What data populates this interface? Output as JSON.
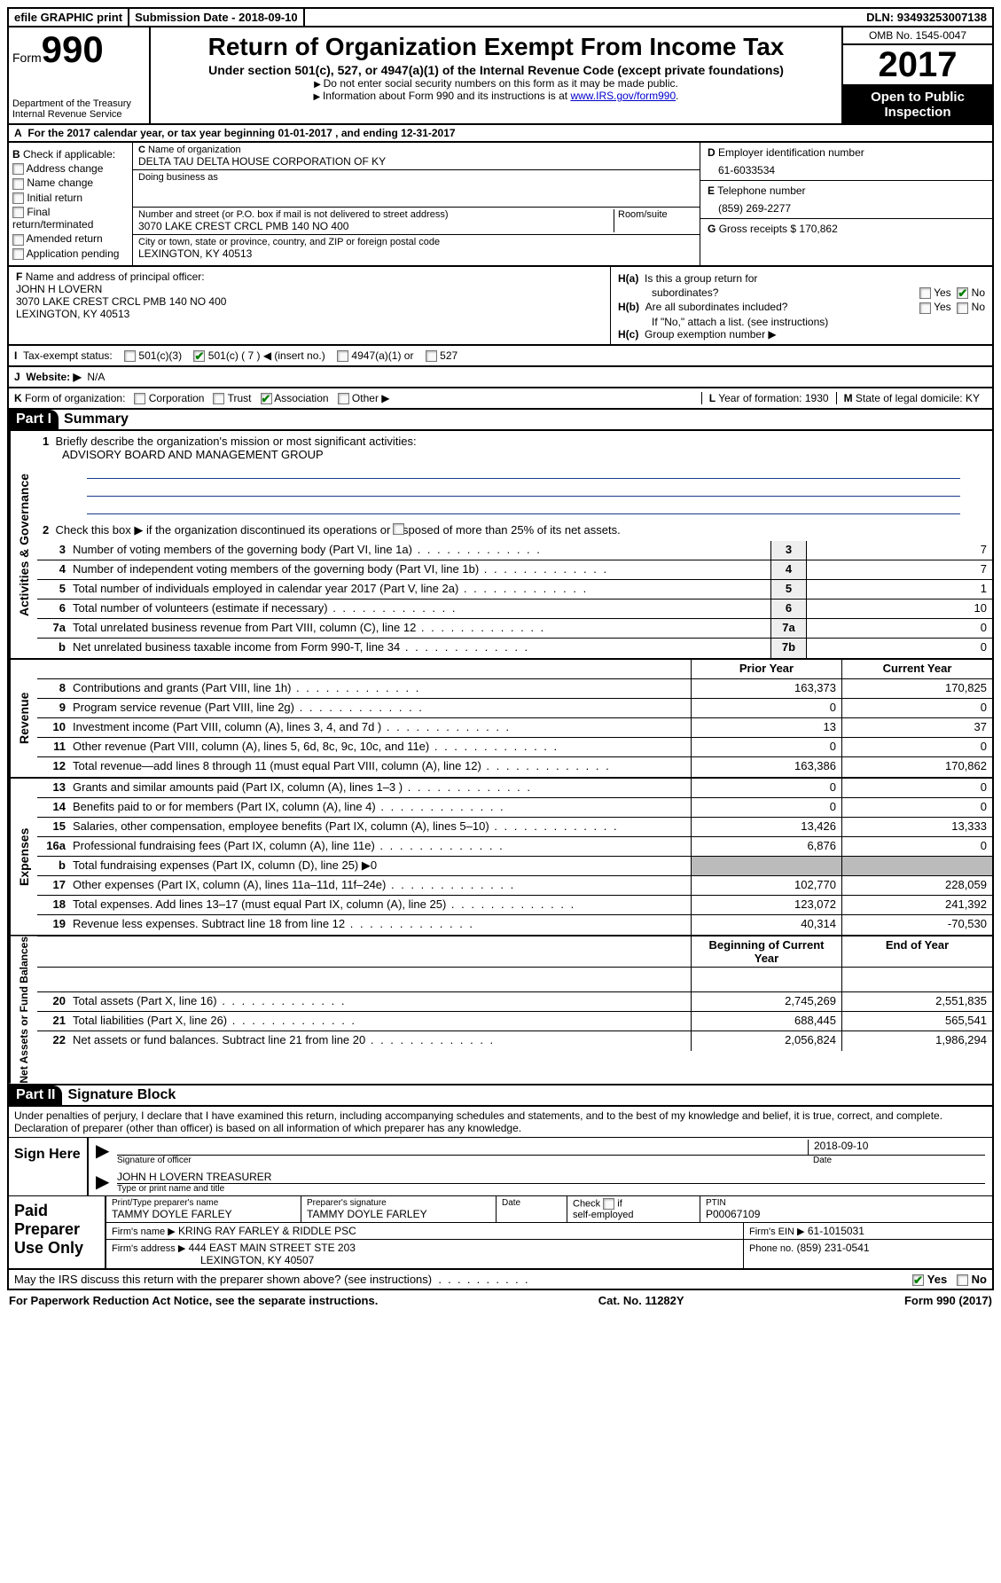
{
  "topbar": {
    "efile": "efile GRAPHIC print",
    "sub_lbl": "Submission Date -",
    "sub_date": "2018-09-10",
    "dln_lbl": "DLN:",
    "dln": "93493253007138"
  },
  "header": {
    "form_word": "Form",
    "form_no": "990",
    "dept1": "Department of the Treasury",
    "dept2": "Internal Revenue Service",
    "title": "Return of Organization Exempt From Income Tax",
    "sub": "Under section 501(c), 527, or 4947(a)(1) of the Internal Revenue Code (except private foundations)",
    "note1": "Do not enter social security numbers on this form as it may be made public.",
    "note2_pre": "Information about Form 990 and its instructions is at ",
    "note2_link": "www.IRS.gov/form990",
    "omb": "OMB No. 1545-0047",
    "year": "2017",
    "inspect1": "Open to Public",
    "inspect2": "Inspection"
  },
  "A": {
    "text": "For the 2017 calendar year, or tax year beginning 01-01-2017   , and ending 12-31-2017"
  },
  "B": {
    "hdr": "Check if applicable:",
    "items": [
      "Address change",
      "Name change",
      "Initial return",
      "Final return/terminated",
      "Amended return",
      "Application pending"
    ]
  },
  "C": {
    "name_lbl": "Name of organization",
    "name": "DELTA TAU DELTA HOUSE CORPORATION OF KY",
    "dba_lbl": "Doing business as",
    "dba": "",
    "street_lbl": "Number and street (or P.O. box if mail is not delivered to street address)",
    "room_lbl": "Room/suite",
    "street": "3070 LAKE CREST CRCL PMB 140 NO 400",
    "city_lbl": "City or town, state or province, country, and ZIP or foreign postal code",
    "city": "LEXINGTON, KY  40513"
  },
  "D": {
    "lbl": "Employer identification number",
    "val": "61-6033534"
  },
  "E": {
    "lbl": "Telephone number",
    "val": "(859) 269-2277"
  },
  "G": {
    "lbl": "Gross receipts $",
    "val": "170,862"
  },
  "F": {
    "lbl": "Name and address of principal officer:",
    "name": "JOHN H LOVERN",
    "addr1": "3070 LAKE CREST CRCL PMB 140 NO 400",
    "addr2": "LEXINGTON, KY  40513"
  },
  "H": {
    "a_lbl": "Is this a group return for",
    "a_sub": "subordinates?",
    "b_lbl": "Are all subordinates included?",
    "b_note": "If \"No,\" attach a list. (see instructions)",
    "c_lbl": "Group exemption number ▶",
    "yes": "Yes",
    "no": "No"
  },
  "I": {
    "lbl": "Tax-exempt status:",
    "o1": "501(c)(3)",
    "o2": "501(c) ( 7 ) ◀ (insert no.)",
    "o3": "4947(a)(1) or",
    "o4": "527"
  },
  "J": {
    "lbl": "Website: ▶",
    "val": "N/A"
  },
  "K": {
    "lbl": "Form of organization:",
    "o1": "Corporation",
    "o2": "Trust",
    "o3": "Association",
    "o4": "Other ▶",
    "L_lbl": "Year of formation:",
    "L_val": "1930",
    "M_lbl": "State of legal domicile:",
    "M_val": "KY"
  },
  "part1": {
    "hdr": "Part I",
    "title": "Summary"
  },
  "summary": {
    "q1": "Briefly describe the organization's mission or most significant activities:",
    "mission": "ADVISORY BOARD AND MANAGEMENT GROUP",
    "q2": "Check this box ▶        if the organization discontinued its operations or disposed of more than 25% of its net assets."
  },
  "gov_lines": [
    {
      "n": "3",
      "d": "Number of voting members of the governing body (Part VI, line 1a)",
      "c": "3",
      "v": "7"
    },
    {
      "n": "4",
      "d": "Number of independent voting members of the governing body (Part VI, line 1b)",
      "c": "4",
      "v": "7"
    },
    {
      "n": "5",
      "d": "Total number of individuals employed in calendar year 2017 (Part V, line 2a)",
      "c": "5",
      "v": "1"
    },
    {
      "n": "6",
      "d": "Total number of volunteers (estimate if necessary)",
      "c": "6",
      "v": "10"
    },
    {
      "n": "7a",
      "d": "Total unrelated business revenue from Part VIII, column (C), line 12",
      "c": "7a",
      "v": "0"
    },
    {
      "n": "b",
      "d": "Net unrelated business taxable income from Form 990-T, line 34",
      "c": "7b",
      "v": "0"
    }
  ],
  "rev_hdr": {
    "py": "Prior Year",
    "cy": "Current Year"
  },
  "rev_lines": [
    {
      "n": "8",
      "d": "Contributions and grants (Part VIII, line 1h)",
      "py": "163,373",
      "cy": "170,825"
    },
    {
      "n": "9",
      "d": "Program service revenue (Part VIII, line 2g)",
      "py": "0",
      "cy": "0"
    },
    {
      "n": "10",
      "d": "Investment income (Part VIII, column (A), lines 3, 4, and 7d )",
      "py": "13",
      "cy": "37"
    },
    {
      "n": "11",
      "d": "Other revenue (Part VIII, column (A), lines 5, 6d, 8c, 9c, 10c, and 11e)",
      "py": "0",
      "cy": "0"
    },
    {
      "n": "12",
      "d": "Total revenue—add lines 8 through 11 (must equal Part VIII, column (A), line 12)",
      "py": "163,386",
      "cy": "170,862"
    }
  ],
  "exp_lines": [
    {
      "n": "13",
      "d": "Grants and similar amounts paid (Part IX, column (A), lines 1–3 )",
      "py": "0",
      "cy": "0"
    },
    {
      "n": "14",
      "d": "Benefits paid to or for members (Part IX, column (A), line 4)",
      "py": "0",
      "cy": "0"
    },
    {
      "n": "15",
      "d": "Salaries, other compensation, employee benefits (Part IX, column (A), lines 5–10)",
      "py": "13,426",
      "cy": "13,333"
    },
    {
      "n": "16a",
      "d": "Professional fundraising fees (Part IX, column (A), line 11e)",
      "py": "6,876",
      "cy": "0"
    },
    {
      "n": "b",
      "d": "Total fundraising expenses (Part IX, column (D), line 25) ▶0",
      "py": "",
      "cy": "",
      "shade": true
    },
    {
      "n": "17",
      "d": "Other expenses (Part IX, column (A), lines 11a–11d, 11f–24e)",
      "py": "102,770",
      "cy": "228,059"
    },
    {
      "n": "18",
      "d": "Total expenses. Add lines 13–17 (must equal Part IX, column (A), line 25)",
      "py": "123,072",
      "cy": "241,392"
    },
    {
      "n": "19",
      "d": "Revenue less expenses. Subtract line 18 from line 12",
      "py": "40,314",
      "cy": "-70,530"
    }
  ],
  "na_hdr": {
    "py": "Beginning of Current Year",
    "cy": "End of Year"
  },
  "na_lines": [
    {
      "n": "20",
      "d": "Total assets (Part X, line 16)",
      "py": "2,745,269",
      "cy": "2,551,835"
    },
    {
      "n": "21",
      "d": "Total liabilities (Part X, line 26)",
      "py": "688,445",
      "cy": "565,541"
    },
    {
      "n": "22",
      "d": "Net assets or fund balances. Subtract line 21 from line 20",
      "py": "2,056,824",
      "cy": "1,986,294"
    }
  ],
  "part2": {
    "hdr": "Part II",
    "title": "Signature Block"
  },
  "sig": {
    "penalty": "Under penalties of perjury, I declare that I have examined this return, including accompanying schedules and statements, and to the best of my knowledge and belief, it is true, correct, and complete. Declaration of preparer (other than officer) is based on all information of which preparer has any knowledge.",
    "sign_here": "Sign Here",
    "sig_lbl": "Signature of officer",
    "date_lbl": "Date",
    "sig_date": "2018-09-10",
    "name": "JOHN H LOVERN TREASURER",
    "name_lbl": "Type or print name and title",
    "paid": "Paid Preparer Use Only",
    "prep_name_lbl": "Print/Type preparer's name",
    "prep_name": "TAMMY DOYLE FARLEY",
    "prep_sig_lbl": "Preparer's signature",
    "prep_sig": "TAMMY DOYLE FARLEY",
    "prep_date_lbl": "Date",
    "self_lbl": "Check        if self-employed",
    "ptin_lbl": "PTIN",
    "ptin": "P00067109",
    "firm_name_lbl": "Firm's name    ▶",
    "firm_name": "KRING RAY FARLEY & RIDDLE PSC",
    "firm_ein_lbl": "Firm's EIN ▶",
    "firm_ein": "61-1015031",
    "firm_addr_lbl": "Firm's address ▶",
    "firm_addr": "444 EAST MAIN STREET STE 203",
    "firm_city": "LEXINGTON, KY  40507",
    "phone_lbl": "Phone no.",
    "phone": "(859) 231-0541"
  },
  "discuss": {
    "q": "May the IRS discuss this return with the preparer shown above? (see instructions)",
    "yes": "Yes",
    "no": "No"
  },
  "footer": {
    "l": "For Paperwork Reduction Act Notice, see the separate instructions.",
    "m": "Cat. No. 11282Y",
    "r": "Form 990 (2017)"
  },
  "sides": {
    "gov": "Activities & Governance",
    "rev": "Revenue",
    "exp": "Expenses",
    "na": "Net Assets or Fund Balances"
  },
  "letters": {
    "A": "A",
    "B": "B",
    "C": "C",
    "D": "D",
    "E": "E",
    "F": "F",
    "G": "G",
    "Ha": "H(a)",
    "Hb": "H(b)",
    "Hc": "H(c)",
    "I": "I",
    "J": "J",
    "K": "K",
    "L": "L",
    "M": "M"
  }
}
